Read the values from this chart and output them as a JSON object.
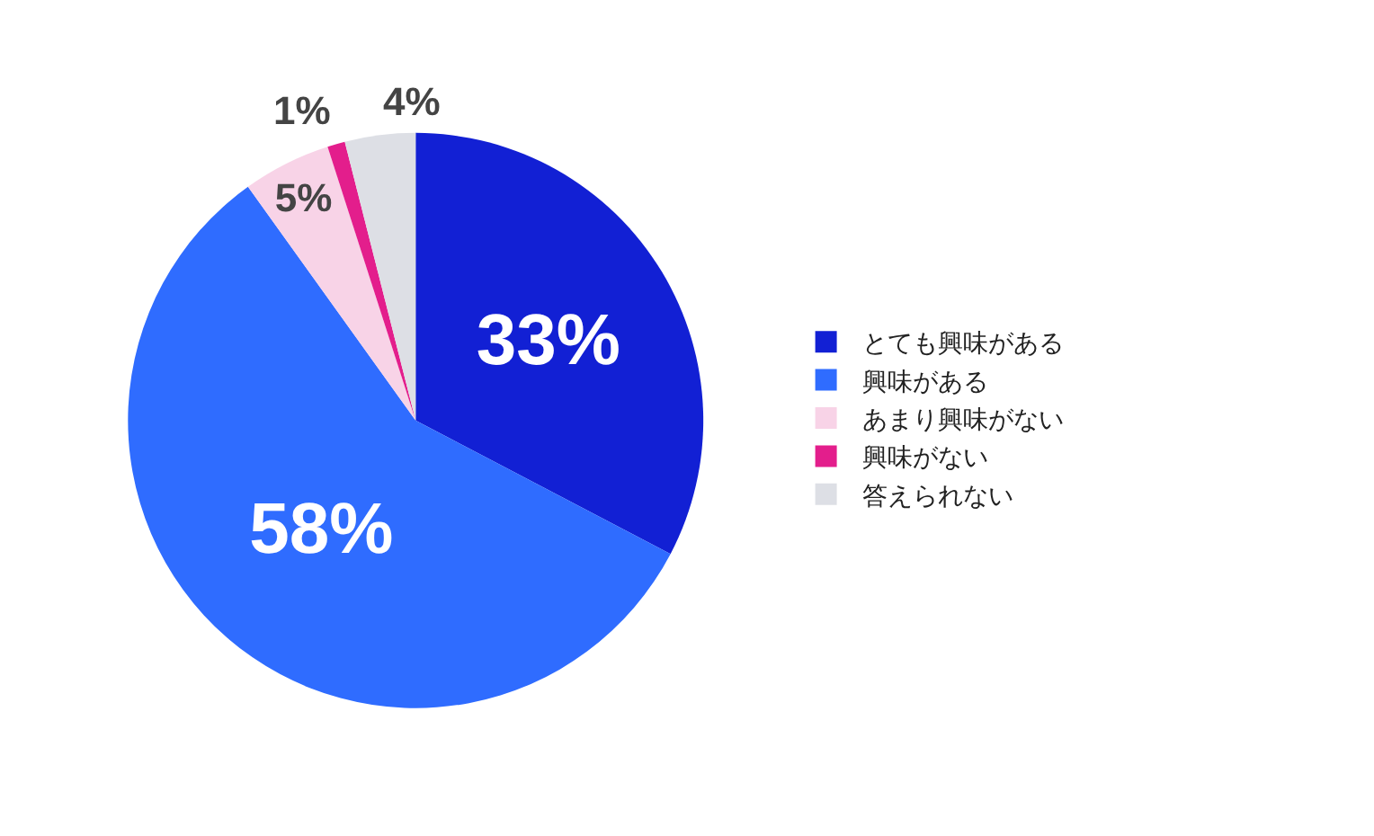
{
  "chart_data": {
    "type": "pie",
    "categories": [
      "とても興味がある",
      "興味がある",
      "あまり興味がない",
      "興味がない",
      "答えられない"
    ],
    "values": [
      33,
      58,
      5,
      1,
      4
    ],
    "value_labels": [
      "33%",
      "58%",
      "5%",
      "1%",
      "4%"
    ],
    "colors": [
      "#1220d4",
      "#2f6cff",
      "#f8d3e7",
      "#e31e8c",
      "#dddfe5"
    ],
    "legend": "right"
  }
}
